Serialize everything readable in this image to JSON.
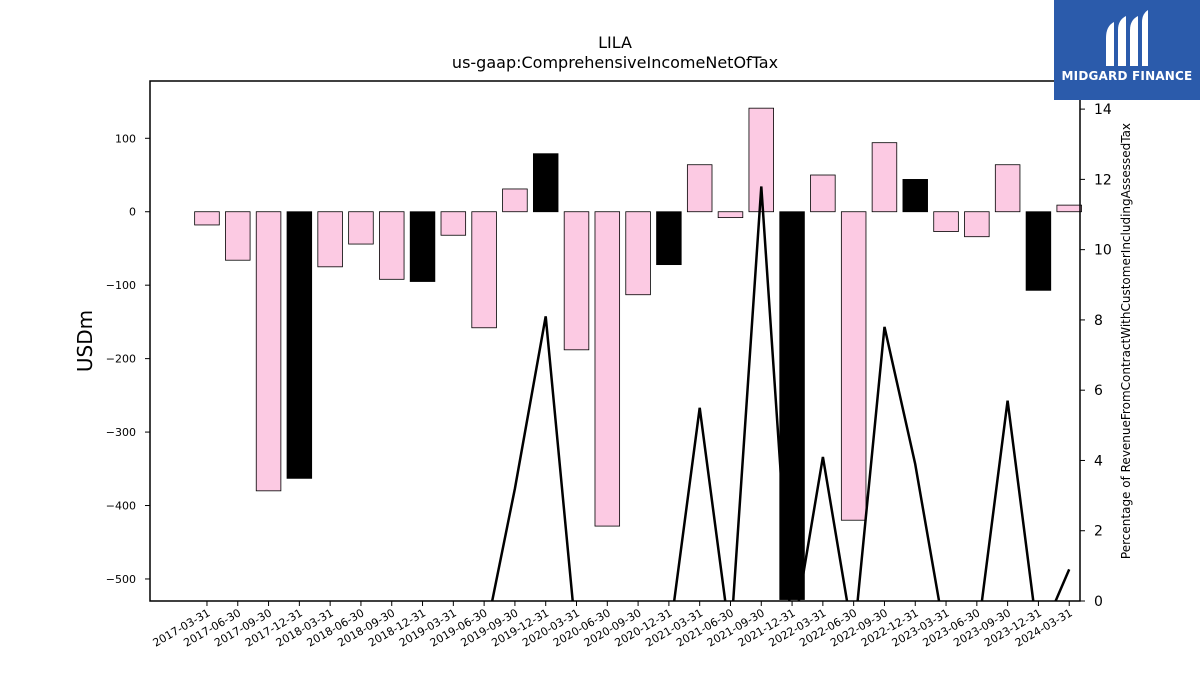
{
  "logo": {
    "text": "MIDGARD FINANCE"
  },
  "chart_data": {
    "type": "bar",
    "title": "LILA",
    "subtitle": "us-gaap:ComprehensiveIncomeNetOfTax",
    "ylabel": "USDm",
    "y2label": "Percentage of RevenueFromContractWithCustomerIncludingAssessedTax",
    "ylim": [
      -530,
      178
    ],
    "y2lim": [
      0,
      14.8
    ],
    "yticks": [
      -500,
      -400,
      -300,
      -200,
      -100,
      0,
      100
    ],
    "y2ticks": [
      0,
      2,
      4,
      6,
      8,
      10,
      12,
      14
    ],
    "colors": {
      "bar": "#fccae3",
      "bar_q4": "#000000",
      "line": "#000000"
    },
    "categories": [
      "2017-03-31",
      "2017-06-30",
      "2017-09-30",
      "2017-12-31",
      "2018-03-31",
      "2018-06-30",
      "2018-09-30",
      "2018-12-31",
      "2019-03-31",
      "2019-06-30",
      "2019-09-30",
      "2019-12-31",
      "2020-03-31",
      "2020-06-30",
      "2020-09-30",
      "2020-12-31",
      "2021-03-31",
      "2021-06-30",
      "2021-09-30",
      "2021-12-31",
      "2022-03-31",
      "2022-06-30",
      "2022-09-30",
      "2022-12-31",
      "2023-03-31",
      "2023-06-30",
      "2023-09-30",
      "2023-12-31",
      "2024-03-31"
    ],
    "series": [
      {
        "kind": "bar",
        "values": [
          -18,
          -66,
          -380,
          -363,
          -75,
          -44,
          -92,
          -95,
          -32,
          -158,
          31,
          79,
          -188,
          -428,
          -113,
          -72,
          64,
          -8,
          141,
          -528,
          50,
          -420,
          94,
          44,
          -27,
          -34,
          64,
          -107,
          9
        ]
      },
      {
        "kind": "line",
        "axis": "right",
        "values": [
          0,
          0,
          0,
          0,
          0,
          0,
          0,
          0,
          0,
          0,
          3.2,
          8.1,
          0,
          0,
          0,
          0,
          5.5,
          0,
          11.8,
          0,
          4.1,
          0,
          7.8,
          3.9,
          0,
          0,
          5.7,
          0,
          0.9
        ]
      }
    ]
  }
}
